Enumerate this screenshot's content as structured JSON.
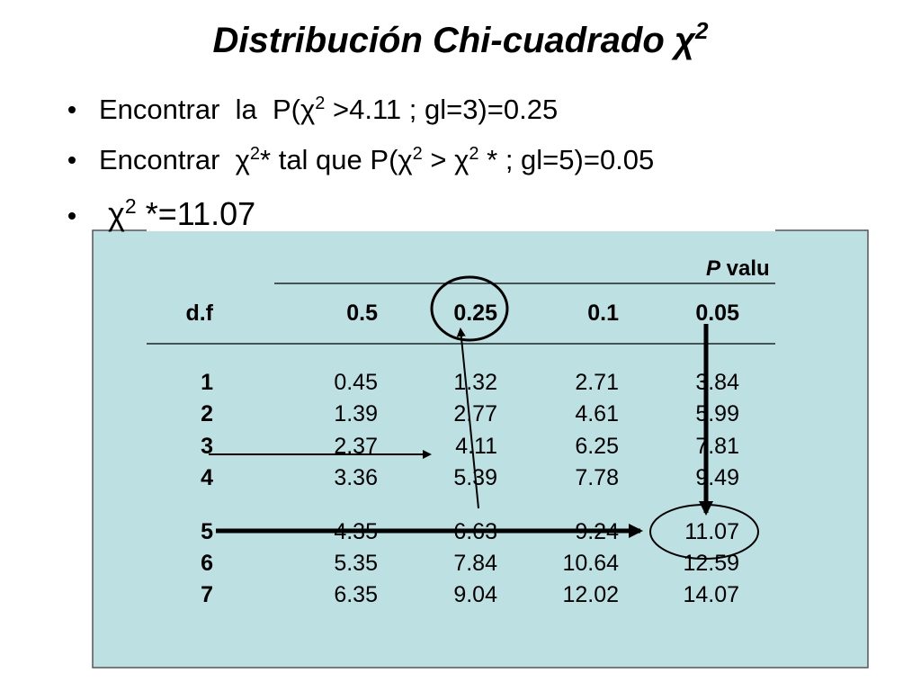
{
  "title": {
    "parts": [
      "Distribución Chi-cuadrado χ",
      "2"
    ]
  },
  "bullets": [
    {
      "parts": [
        "Encontrar  la  P(χ",
        "2",
        " >4.11 ; gl=3)=0.25"
      ]
    },
    {
      "parts": [
        "Encontrar  χ",
        "2",
        "* tal que P(χ",
        "2",
        " > χ",
        "2",
        " * ; gl=5)=0.05"
      ]
    },
    {
      "parts": [
        " χ",
        "2",
        " *=11.07"
      ]
    }
  ],
  "table": {
    "group_header": "P valu",
    "header": [
      "d.f",
      "0.5",
      "0.25",
      "0.1",
      "0.05"
    ],
    "rows": [
      [
        "1",
        "0.45",
        "1.32",
        "2.71",
        "3.84"
      ],
      [
        "2",
        "1.39",
        "2.77",
        "4.61",
        "5.99"
      ],
      [
        "3",
        "2.37",
        "4.11",
        "6.25",
        "7.81"
      ],
      [
        "4",
        "3.36",
        "5.39",
        "7.78",
        "9.49"
      ],
      [
        "5",
        "4.35",
        "6.63",
        "9.24",
        "11.07"
      ],
      [
        "6",
        "5.35",
        "7.84",
        "10.64",
        "12.59"
      ],
      [
        "7",
        "6.35",
        "9.04",
        "12.02",
        "14.07"
      ]
    ]
  }
}
